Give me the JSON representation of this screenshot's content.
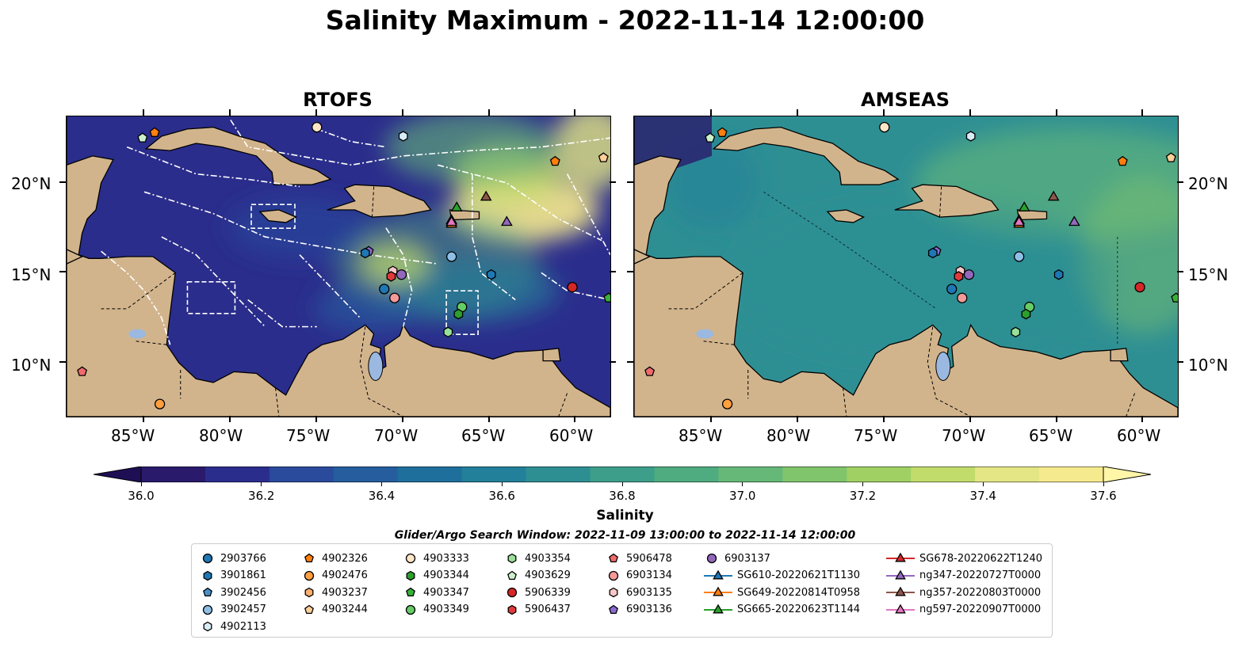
{
  "title": "Salinity Maximum - 2022-11-14 12:00:00",
  "maps": [
    {
      "title": "RTOFS"
    },
    {
      "title": "AMSEAS"
    }
  ],
  "axes": {
    "lat_labels": [
      "20°N",
      "15°N",
      "10°N"
    ],
    "lon_labels": [
      "85°W",
      "80°W",
      "75°W",
      "70°W",
      "65°W",
      "60°W"
    ]
  },
  "colorbar": {
    "label": "Salinity",
    "ticks": [
      "36.0",
      "36.2",
      "36.4",
      "36.6",
      "36.8",
      "37.0",
      "37.2",
      "37.4",
      "37.6"
    ],
    "colors": [
      "#2a1a6b",
      "#2b2d8c",
      "#2a4a9c",
      "#255d9e",
      "#1f6f9c",
      "#23809a",
      "#2e8f93",
      "#3d9e8a",
      "#4fab80",
      "#66b878",
      "#80c46c",
      "#a0d064",
      "#c2dc6c",
      "#e4e685",
      "#f6ea8e"
    ],
    "range": [
      36.0,
      37.6
    ]
  },
  "search_window": "Glider/Argo Search Window: 2022-11-09 13:00:00 to 2022-11-14 12:00:00",
  "legend": [
    {
      "label": "2903766",
      "marker": "circle",
      "color": "#1f77b4"
    },
    {
      "label": "3901861",
      "marker": "hexagon",
      "color": "#1f77b4"
    },
    {
      "label": "3902456",
      "marker": "pentagon",
      "color": "#4a90c8"
    },
    {
      "label": "3902457",
      "marker": "circle",
      "color": "#8ec0e6"
    },
    {
      "label": "4902113",
      "marker": "hexagon",
      "color": "#d8ecf8"
    },
    {
      "label": "4902326",
      "marker": "pentagon",
      "color": "#ff7f0e"
    },
    {
      "label": "4902476",
      "marker": "circle",
      "color": "#ff9f40"
    },
    {
      "label": "4903237",
      "marker": "hexagon",
      "color": "#ffb070"
    },
    {
      "label": "4903244",
      "marker": "pentagon",
      "color": "#ffcf98"
    },
    {
      "label": "4903333",
      "marker": "circle",
      "color": "#ffe6c8"
    },
    {
      "label": "4903344",
      "marker": "hexagon",
      "color": "#2ca02c"
    },
    {
      "label": "4903347",
      "marker": "pentagon",
      "color": "#38b038"
    },
    {
      "label": "4903349",
      "marker": "circle",
      "color": "#66cc66"
    },
    {
      "label": "4903354",
      "marker": "hexagon",
      "color": "#99e099"
    },
    {
      "label": "4903629",
      "marker": "pentagon",
      "color": "#ccf2cc"
    },
    {
      "label": "5906339",
      "marker": "circle",
      "color": "#d62728"
    },
    {
      "label": "5906437",
      "marker": "hexagon",
      "color": "#e03a3c"
    },
    {
      "label": "5906478",
      "marker": "pentagon",
      "color": "#ee6a6c"
    },
    {
      "label": "6903134",
      "marker": "circle",
      "color": "#f49a9a"
    },
    {
      "label": "6903135",
      "marker": "hexagon",
      "color": "#fac8c8"
    },
    {
      "label": "6903136",
      "marker": "pentagon",
      "color": "#8c6bd1"
    },
    {
      "label": "6903137",
      "marker": "circle",
      "color": "#9467bd"
    },
    {
      "label": "SG610-20220621T1130",
      "marker": "triangle",
      "color": "#1f77b4"
    },
    {
      "label": "SG649-20220814T0958",
      "marker": "triangle",
      "color": "#ff7f0e"
    },
    {
      "label": "SG665-20220623T1144",
      "marker": "triangle",
      "color": "#2ca02c"
    },
    {
      "label": "SG678-20220622T1240",
      "marker": "triangle",
      "color": "#d62728"
    },
    {
      "label": "ng347-20220727T0000",
      "marker": "triangle",
      "color": "#9467bd"
    },
    {
      "label": "ng357-20220803T0000",
      "marker": "triangle",
      "color": "#8c564b"
    },
    {
      "label": "ng597-20220907T0000",
      "marker": "triangle",
      "color": "#e377c2"
    }
  ],
  "platform_positions": [
    {
      "id": "4902326",
      "lon": -84.4,
      "lat": 22.8
    },
    {
      "id": "4903629",
      "lon": -85.1,
      "lat": 22.5
    },
    {
      "id": "4903333",
      "lon": -75.0,
      "lat": 23.1
    },
    {
      "id": "4902113",
      "lon": -70.0,
      "lat": 22.6
    },
    {
      "id": "4902326",
      "lon": -61.2,
      "lat": 21.2
    },
    {
      "id": "4903244",
      "lon": -58.4,
      "lat": 21.4
    },
    {
      "id": "ng357-20220803T0000",
      "lon": -65.2,
      "lat": 19.2
    },
    {
      "id": "SG665-20220623T1144",
      "lon": -66.9,
      "lat": 18.6
    },
    {
      "id": "SG678-20220622T1240",
      "lon": -67.2,
      "lat": 17.9
    },
    {
      "id": "SG649-20220814T0958",
      "lon": -67.2,
      "lat": 17.7
    },
    {
      "id": "ng597-20220907T0000",
      "lon": -67.2,
      "lat": 17.8
    },
    {
      "id": "ng347-20220727T0000",
      "lon": -64.0,
      "lat": 17.8
    },
    {
      "id": "6903136",
      "lon": -72.0,
      "lat": 16.2
    },
    {
      "id": "3901861",
      "lon": -72.2,
      "lat": 16.1
    },
    {
      "id": "3902457",
      "lon": -67.2,
      "lat": 15.9
    },
    {
      "id": "6903135",
      "lon": -70.6,
      "lat": 15.1
    },
    {
      "id": "5906437",
      "lon": -70.7,
      "lat": 14.8
    },
    {
      "id": "6903137",
      "lon": -70.1,
      "lat": 14.9
    },
    {
      "id": "2903766",
      "lon": -71.1,
      "lat": 14.1
    },
    {
      "id": "6903134",
      "lon": -70.5,
      "lat": 13.6
    },
    {
      "id": "3901861",
      "lon": -64.9,
      "lat": 14.9
    },
    {
      "id": "5906339",
      "lon": -60.2,
      "lat": 14.2
    },
    {
      "id": "4903347",
      "lon": -58.1,
      "lat": 13.6
    },
    {
      "id": "4903349",
      "lon": -66.6,
      "lat": 13.1
    },
    {
      "id": "4903344",
      "lon": -66.8,
      "lat": 12.7
    },
    {
      "id": "4903354",
      "lon": -67.4,
      "lat": 11.7
    },
    {
      "id": "5906478",
      "lon": -88.6,
      "lat": 9.5
    },
    {
      "id": "4902476",
      "lon": -84.1,
      "lat": 7.7
    }
  ]
}
